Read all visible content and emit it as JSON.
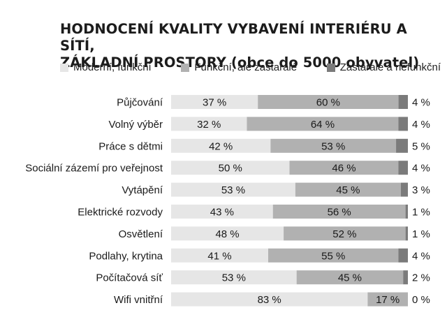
{
  "title": {
    "line1": "HODNOCENÍ KVALITY VYBAVENÍ INTERIÉRU A SÍTÍ,",
    "line2": "ZÁKLADNÍ PROSTORY (obce do 5000 obyvatel)"
  },
  "colors": {
    "series1": "#e6e6e6",
    "series2": "#b1b1b1",
    "series3": "#7b7b7b"
  },
  "chart_data": {
    "type": "bar",
    "orientation": "horizontal",
    "stacked": true,
    "categories": [
      "Půjčování",
      "Volný výběr",
      "Práce s dětmi",
      "Sociální zázemí pro veřejnost",
      "Vytápění",
      "Elektrické rozvody",
      "Osvětlení",
      "Podlahy, krytina",
      "Počítačová síť",
      "Wifi vnitřní"
    ],
    "series": [
      {
        "name": "Moderní, funkční",
        "values": [
          37,
          32,
          42,
          50,
          53,
          43,
          48,
          41,
          53,
          83
        ]
      },
      {
        "name": "Funkční, ale zastaralé",
        "values": [
          60,
          64,
          53,
          46,
          45,
          56,
          52,
          55,
          45,
          17
        ]
      },
      {
        "name": "Zastaralé a nefunkční",
        "values": [
          4,
          4,
          5,
          4,
          3,
          1,
          1,
          4,
          2,
          0
        ]
      }
    ],
    "value_labels": [
      [
        "37 %",
        "60 %",
        "4 %"
      ],
      [
        "32 %",
        "64 %",
        "4 %"
      ],
      [
        "42 %",
        "53 %",
        "5 %"
      ],
      [
        "50 %",
        "46 %",
        "4 %"
      ],
      [
        "53 %",
        "45 %",
        "3 %"
      ],
      [
        "43 %",
        "56 %",
        "1 %"
      ],
      [
        "48 %",
        "52 %",
        "1 %"
      ],
      [
        "41 %",
        "55 %",
        "4 %"
      ],
      [
        "53 %",
        "45 %",
        "2 %"
      ],
      [
        "83 %",
        "17 %",
        "0 %"
      ]
    ],
    "unit": "%",
    "legend_position": "top",
    "grid": false
  }
}
